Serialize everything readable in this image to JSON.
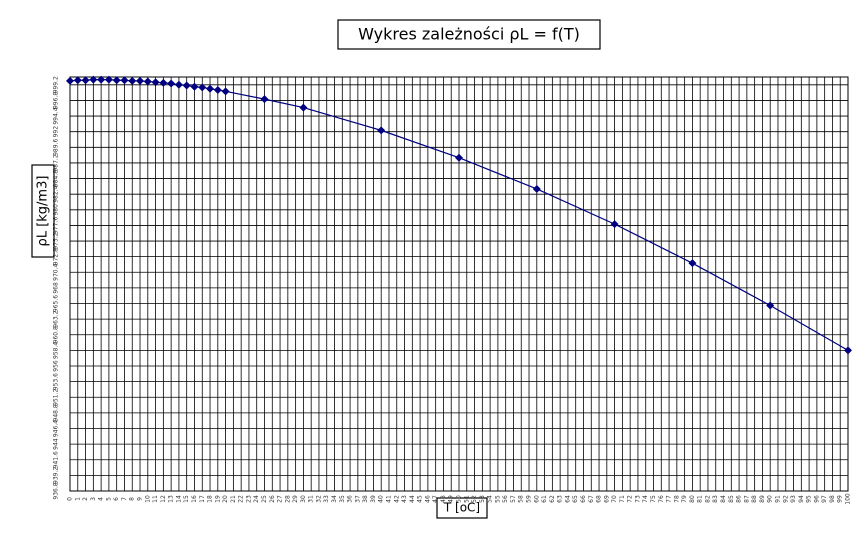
{
  "chart_data": {
    "type": "line",
    "title": "Wykres zależności ρL = f(T)",
    "x_label": "T [oC]",
    "y_label": "ρL [kg/m3]",
    "x": [
      0,
      1,
      2,
      3,
      4,
      5,
      6,
      7,
      8,
      9,
      10,
      11,
      12,
      13,
      14,
      15,
      16,
      17,
      18,
      19,
      20,
      25,
      30,
      40,
      50,
      60,
      70,
      80,
      90,
      100
    ],
    "series": [
      {
        "name": "ρL",
        "color": "#000080",
        "values": [
          999.8,
          999.9,
          999.9,
          1000.0,
          1000.0,
          1000.0,
          999.9,
          999.9,
          999.8,
          999.8,
          999.7,
          999.6,
          999.5,
          999.4,
          999.2,
          999.1,
          998.9,
          998.8,
          998.6,
          998.4,
          998.2,
          997.0,
          995.7,
          992.2,
          988.0,
          983.2,
          977.8,
          971.8,
          965.3,
          958.4
        ]
      }
    ],
    "xlim": [
      0,
      100
    ],
    "xticks": [
      0,
      1,
      2,
      3,
      4,
      5,
      6,
      7,
      8,
      9,
      10,
      11,
      12,
      13,
      14,
      15,
      16,
      17,
      18,
      19,
      20,
      21,
      22,
      23,
      24,
      25,
      26,
      27,
      28,
      29,
      30,
      31,
      32,
      33,
      34,
      35,
      36,
      37,
      38,
      39,
      40,
      41,
      42,
      43,
      44,
      45,
      46,
      47,
      48,
      49,
      50,
      51,
      52,
      53,
      54,
      55,
      56,
      57,
      58,
      59,
      60,
      61,
      62,
      63,
      64,
      65,
      66,
      67,
      68,
      69,
      70,
      71,
      72,
      73,
      74,
      75,
      76,
      77,
      78,
      79,
      80,
      81,
      82,
      83,
      84,
      85,
      86,
      87,
      88,
      89,
      90,
      91,
      92,
      93,
      94,
      95,
      96,
      97,
      98,
      99,
      100
    ],
    "ylim": [
      936.8,
      1000.4
    ],
    "yticks": [
      936.8,
      939.2,
      941.6,
      944,
      946.4,
      948.8,
      951.2,
      953.6,
      956,
      958.4,
      960.8,
      963.2,
      965.6,
      968,
      970.4,
      972.8,
      975.2,
      977.6,
      980,
      982.4,
      984.8,
      987.2,
      989.6,
      992,
      994.4,
      996.8,
      999.2
    ],
    "grid": true
  }
}
